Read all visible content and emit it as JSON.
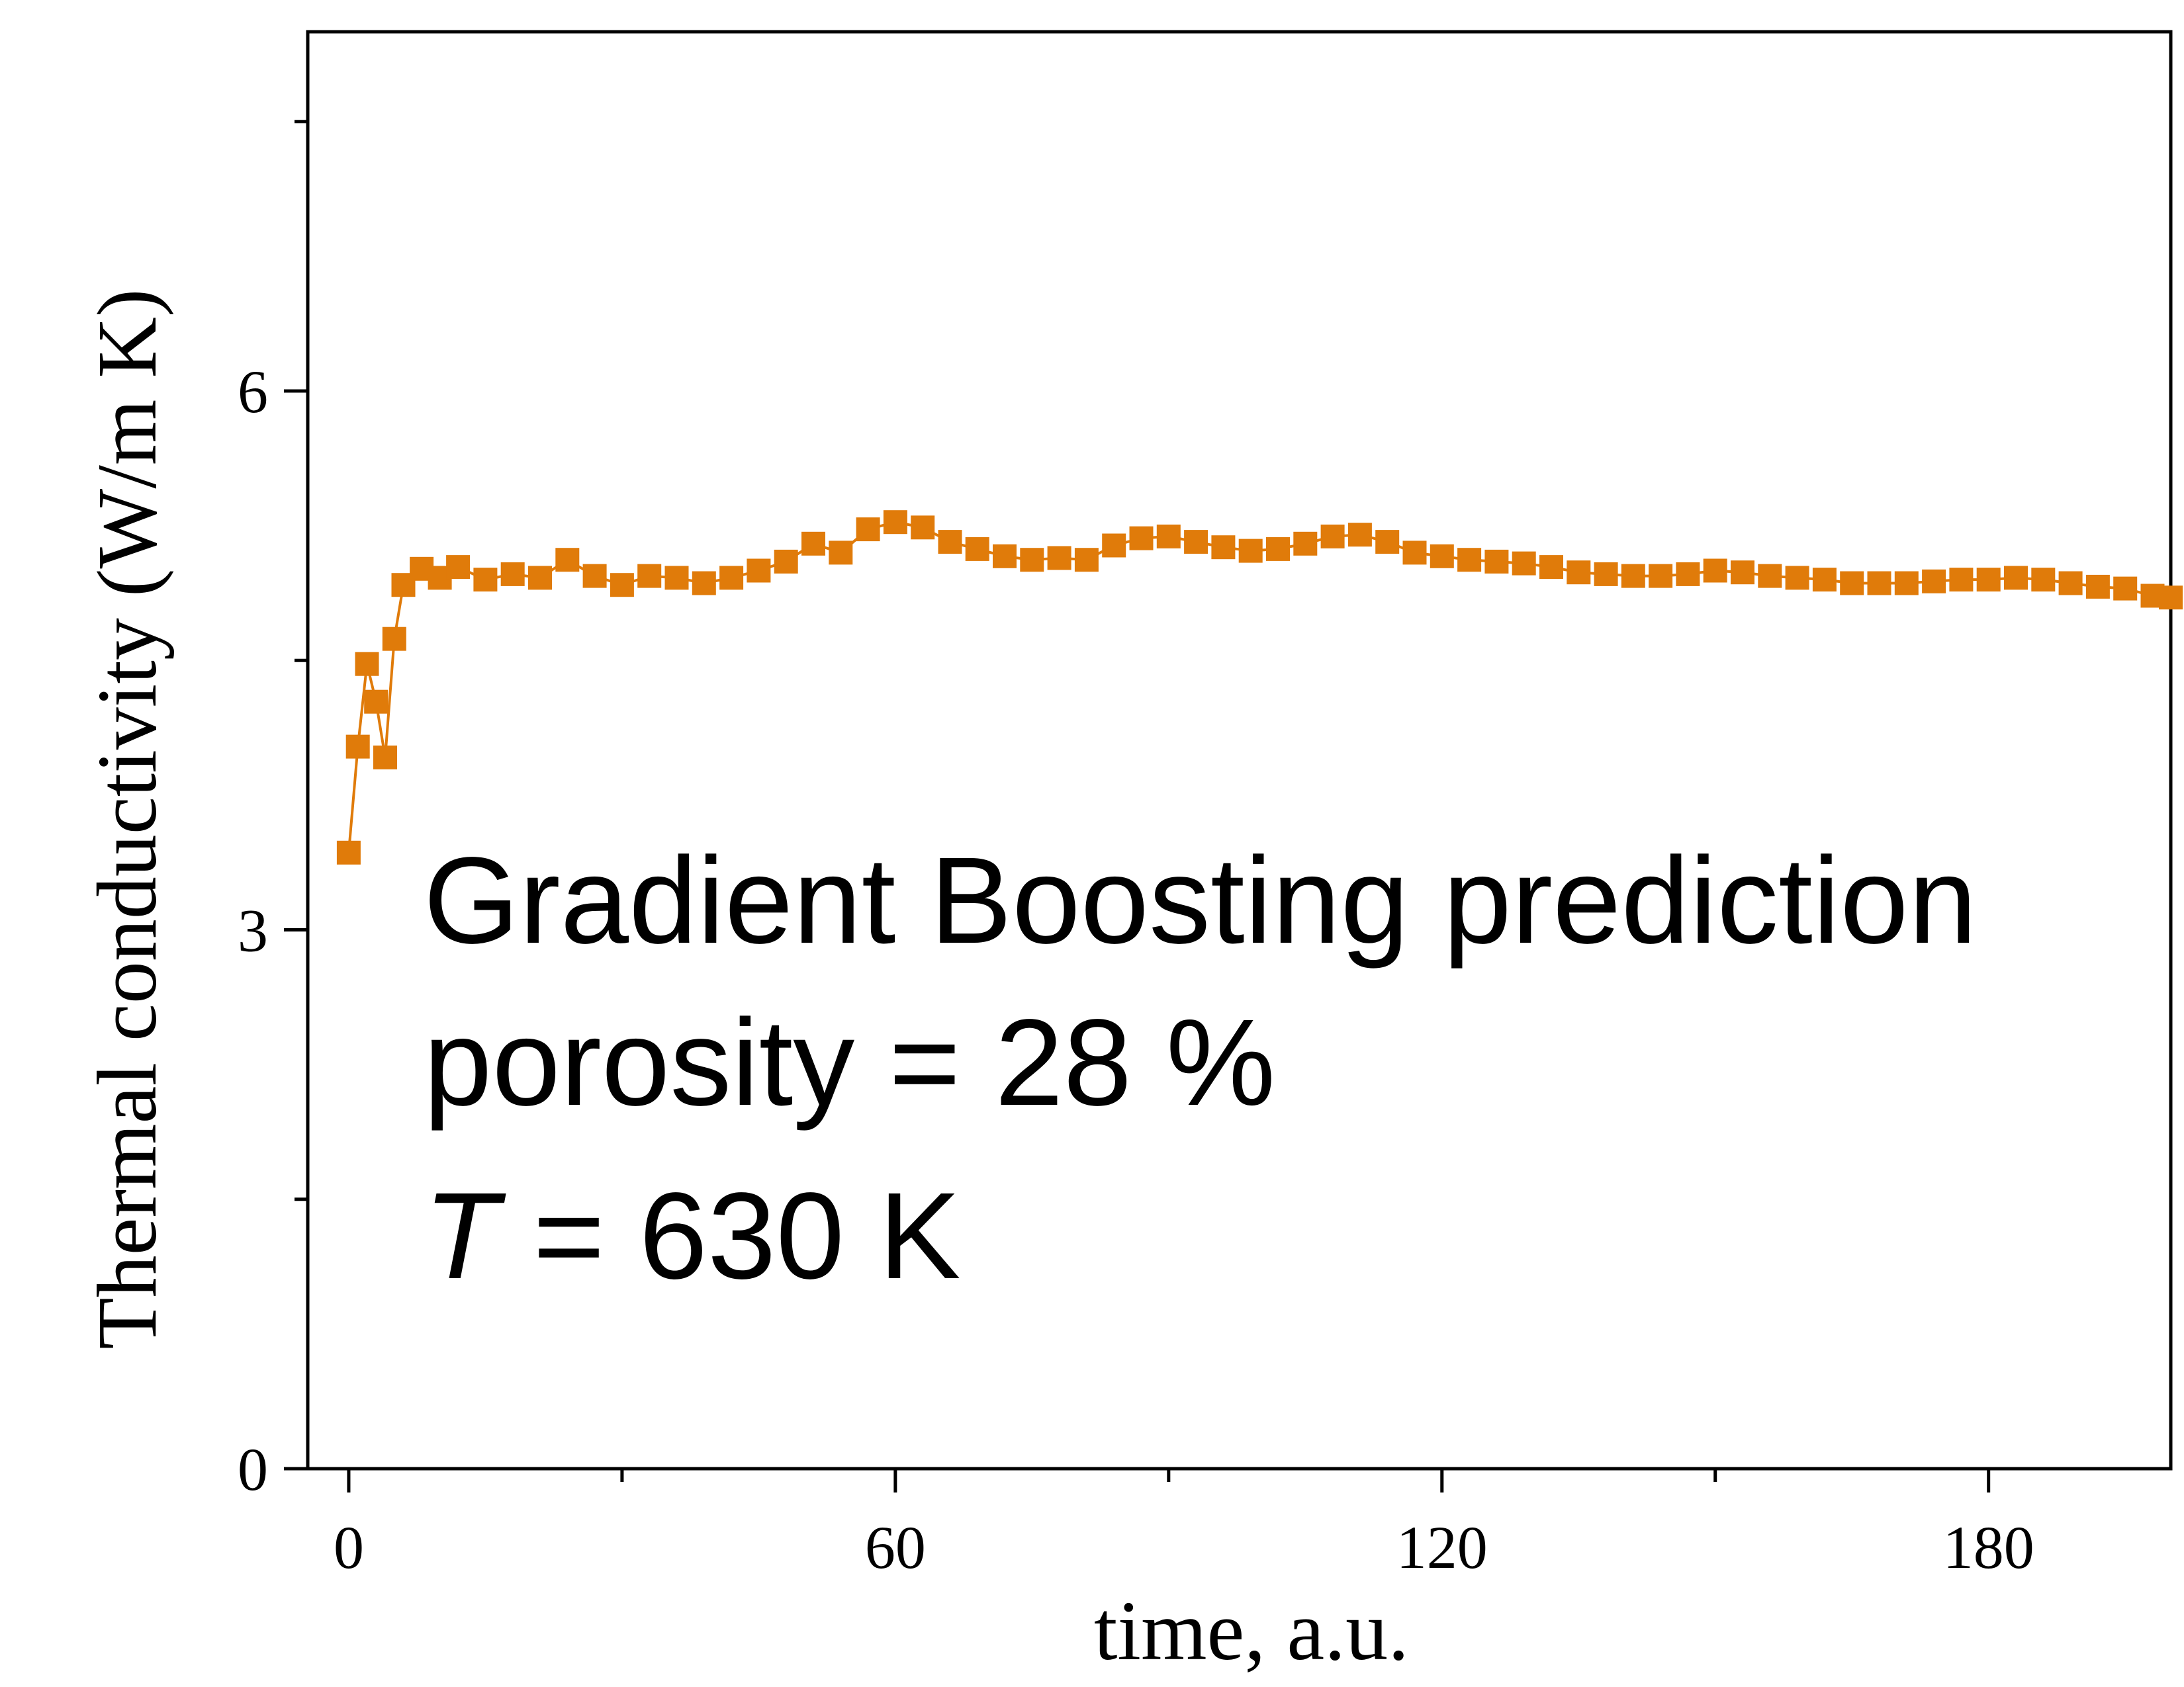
{
  "chart_data": {
    "type": "scatter",
    "xlabel": "time, a.u.",
    "ylabel": "Thermal conductivity (W/m K)",
    "xlim": [
      -4.5,
      200
    ],
    "ylim": [
      0,
      8
    ],
    "x_ticks": [
      0,
      60,
      120,
      180
    ],
    "x_minor_ticks": [
      30,
      90,
      150
    ],
    "y_ticks": [
      0,
      3,
      6
    ],
    "y_minor_ticks": [
      1.5,
      4.5,
      7.5
    ],
    "grid": false,
    "legend": "none",
    "marker": "square",
    "connected": true,
    "annotation": {
      "line1": "Gradient Boosting prediction",
      "line2": "porosity = 28 %",
      "line3_symbol": "T",
      "line3_rest": " = 630 K"
    },
    "series": [
      {
        "color": "#E07B0A",
        "x": [
          0,
          1,
          2,
          3,
          4,
          5,
          6,
          8,
          10,
          12,
          15,
          18,
          21,
          24,
          27,
          30,
          33,
          36,
          39,
          42,
          45,
          48,
          51,
          54,
          57,
          60,
          63,
          66,
          69,
          72,
          75,
          78,
          81,
          84,
          87,
          90,
          93,
          96,
          99,
          102,
          105,
          108,
          111,
          114,
          117,
          120,
          123,
          126,
          129,
          132,
          135,
          138,
          141,
          144,
          147,
          150,
          153,
          156,
          159,
          162,
          165,
          168,
          171,
          174,
          177,
          180,
          183,
          186,
          189,
          192,
          195,
          198,
          200
        ],
        "y": [
          3.43,
          4.02,
          4.48,
          4.27,
          3.96,
          4.62,
          4.92,
          5.01,
          4.96,
          5.02,
          4.95,
          4.98,
          4.96,
          5.06,
          4.97,
          4.92,
          4.97,
          4.96,
          4.93,
          4.96,
          5.0,
          5.05,
          5.15,
          5.1,
          5.23,
          5.27,
          5.24,
          5.16,
          5.12,
          5.08,
          5.06,
          5.07,
          5.06,
          5.14,
          5.18,
          5.19,
          5.16,
          5.13,
          5.11,
          5.12,
          5.15,
          5.19,
          5.2,
          5.16,
          5.1,
          5.08,
          5.06,
          5.05,
          5.04,
          5.02,
          4.99,
          4.98,
          4.97,
          4.97,
          4.98,
          5.0,
          4.99,
          4.97,
          4.96,
          4.95,
          4.93,
          4.93,
          4.93,
          4.94,
          4.95,
          4.95,
          4.96,
          4.95,
          4.93,
          4.91,
          4.9,
          4.86,
          4.85
        ]
      }
    ]
  }
}
